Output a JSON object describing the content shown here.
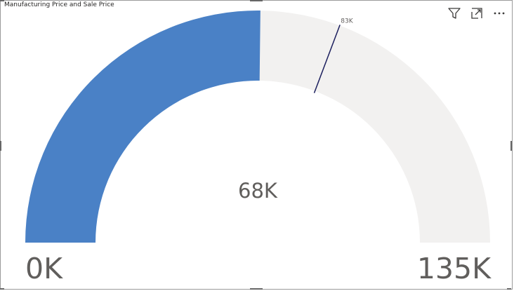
{
  "visual": {
    "title": "Manufacturing Price and Sale Price",
    "header_icons": [
      "filter-icon",
      "focus-mode-icon",
      "more-options-icon"
    ]
  },
  "chart_data": {
    "type": "gauge",
    "title": "Manufacturing Price and Sale Price",
    "min": 0,
    "max": 135,
    "value": 68,
    "target": 83,
    "unit": "K",
    "labels": {
      "min": "0K",
      "max": "135K",
      "value": "68K",
      "target": "83K"
    },
    "colors": {
      "fill": "#4a81c6",
      "track": "#f2f1f0",
      "target": "#1c1f5e"
    }
  }
}
